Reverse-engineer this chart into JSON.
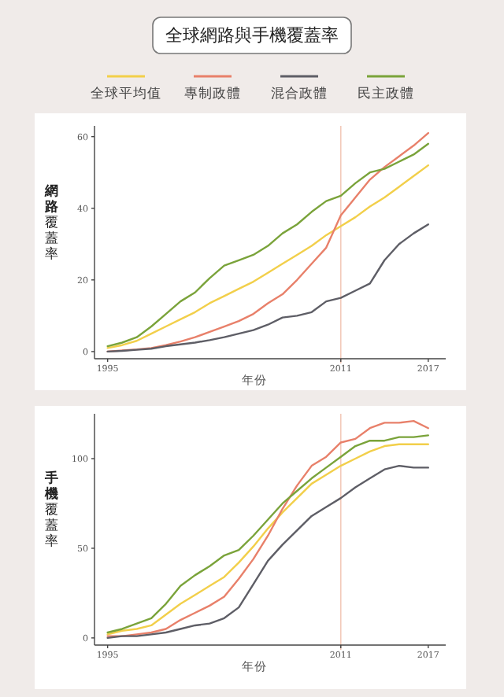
{
  "chart_data": [
    {
      "type": "line",
      "title": "全球網路與手機覆蓋率",
      "xlabel": "年份",
      "ylabel": "**網路**覆蓋率",
      "legend": "top",
      "x": [
        1995,
        1996,
        1997,
        1998,
        1999,
        2000,
        2001,
        2002,
        2003,
        2004,
        2005,
        2006,
        2007,
        2008,
        2009,
        2010,
        2011,
        2012,
        2013,
        2014,
        2015,
        2016,
        2017
      ],
      "xlim": [
        1994.1,
        2018.2
      ],
      "xticks": [
        1995,
        2011,
        2017
      ],
      "ylim": [
        -2,
        63
      ],
      "yticks": [
        0,
        20,
        40,
        60
      ],
      "ref_lines": [
        {
          "axis": "x",
          "value": 2011,
          "color": "#f2c9b8"
        }
      ],
      "series": [
        {
          "name": "全球平均值",
          "color": "#f2cf4a",
          "values": [
            1,
            1.8,
            3,
            5,
            7,
            9,
            11,
            13.5,
            15.5,
            17.5,
            19.5,
            22,
            24.5,
            27,
            29.5,
            32.5,
            35,
            37.5,
            40.5,
            43,
            46,
            49,
            52
          ]
        },
        {
          "name": "專制政體",
          "color": "#e8806a",
          "values": [
            0,
            0.3,
            0.6,
            1,
            1.8,
            2.8,
            4,
            5.5,
            7,
            8.5,
            10.5,
            13.5,
            16,
            20,
            24.5,
            29,
            38,
            43,
            48,
            51.5,
            54.5,
            57.5,
            61
          ]
        },
        {
          "name": "混合政體",
          "color": "#5e5e66",
          "values": [
            0,
            0.2,
            0.5,
            0.8,
            1.5,
            2,
            2.5,
            3.2,
            4,
            5,
            6,
            7.5,
            9.5,
            10,
            11,
            14,
            15,
            17,
            19,
            25.5,
            30,
            33,
            35.5
          ]
        },
        {
          "name": "民主政體",
          "color": "#7aa33a",
          "values": [
            1.5,
            2.5,
            4,
            7,
            10.5,
            14,
            16.5,
            20.5,
            24,
            25.5,
            27,
            29.5,
            33,
            35.5,
            39,
            42,
            43.5,
            47,
            50,
            51,
            53,
            55,
            58
          ]
        }
      ]
    },
    {
      "type": "line",
      "xlabel": "年份",
      "ylabel": "**手機**覆蓋率",
      "x": [
        1995,
        1996,
        1997,
        1998,
        1999,
        2000,
        2001,
        2002,
        2003,
        2004,
        2005,
        2006,
        2007,
        2008,
        2009,
        2010,
        2011,
        2012,
        2013,
        2014,
        2015,
        2016,
        2017
      ],
      "xlim": [
        1994.1,
        2018.2
      ],
      "xticks": [
        1995,
        2011,
        2017
      ],
      "ylim": [
        -4,
        125
      ],
      "yticks": [
        0,
        50,
        100
      ],
      "ref_lines": [
        {
          "axis": "x",
          "value": 2011,
          "color": "#f2c9b8"
        }
      ],
      "series": [
        {
          "color": "#f2cf4a",
          "values": [
            2,
            4,
            5,
            7,
            13,
            19,
            24,
            29,
            34,
            42,
            51,
            61,
            70,
            78,
            86,
            91,
            96,
            100,
            104,
            107,
            108,
            108,
            108
          ]
        },
        {
          "color": "#e8806a",
          "values": [
            1,
            1,
            2,
            3,
            5,
            10,
            14,
            18,
            23,
            33,
            44,
            57,
            72,
            85,
            96,
            101,
            109,
            111,
            117,
            120,
            120,
            121,
            117
          ]
        },
        {
          "color": "#5e5e66",
          "values": [
            0,
            1,
            1,
            2,
            3,
            5,
            7,
            8,
            11,
            17,
            30,
            43,
            52,
            60,
            68,
            73,
            78,
            84,
            89,
            94,
            96,
            95,
            95
          ]
        },
        {
          "color": "#7aa33a",
          "values": [
            3,
            5,
            8,
            11,
            19,
            29,
            35,
            40,
            46,
            49,
            57,
            66,
            75,
            82,
            89,
            95,
            101,
            107,
            110,
            110,
            112,
            112,
            113
          ]
        }
      ]
    }
  ]
}
